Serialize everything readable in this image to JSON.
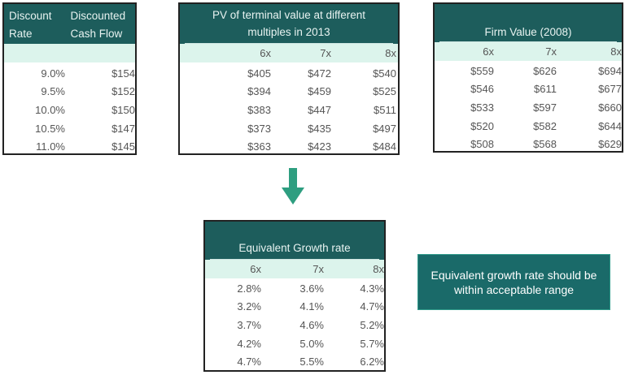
{
  "discount_table": {
    "headers": [
      "Discount Rate",
      "Discounted Cash Flow"
    ],
    "rows": [
      [
        "9.0%",
        "$154"
      ],
      [
        "9.5%",
        "$152"
      ],
      [
        "10.0%",
        "$150"
      ],
      [
        "10.5%",
        "$147"
      ],
      [
        "11.0%",
        "$145"
      ]
    ]
  },
  "pv_table": {
    "title": "PV of terminal value at different multiples in 2013",
    "columns": [
      "6x",
      "7x",
      "8x"
    ],
    "rows": [
      [
        "$405",
        "$472",
        "$540"
      ],
      [
        "$394",
        "$459",
        "$525"
      ],
      [
        "$383",
        "$447",
        "$511"
      ],
      [
        "$373",
        "$435",
        "$497"
      ],
      [
        "$363",
        "$423",
        "$484"
      ]
    ]
  },
  "firm_table": {
    "title": "Firm Value (2008)",
    "columns": [
      "6x",
      "7x",
      "8x"
    ],
    "rows": [
      [
        "$559",
        "$626",
        "$694"
      ],
      [
        "$546",
        "$611",
        "$677"
      ],
      [
        "$533",
        "$597",
        "$660"
      ],
      [
        "$520",
        "$582",
        "$644"
      ],
      [
        "$508",
        "$568",
        "$629"
      ]
    ]
  },
  "growth_table": {
    "title": "Equivalent Growth rate",
    "columns": [
      "6x",
      "7x",
      "8x"
    ],
    "rows": [
      [
        "2.8%",
        "3.6%",
        "4.3%"
      ],
      [
        "3.2%",
        "4.1%",
        "4.7%"
      ],
      [
        "3.7%",
        "4.6%",
        "5.2%"
      ],
      [
        "4.2%",
        "5.0%",
        "5.7%"
      ],
      [
        "4.7%",
        "5.5%",
        "6.2%"
      ]
    ]
  },
  "callout": {
    "text": "Equivalent growth rate should be within acceptable range"
  },
  "colors": {
    "dark_teal": "#1d5d5c",
    "light_mint": "#dcf4ec",
    "arrow": "#2e9e80"
  }
}
